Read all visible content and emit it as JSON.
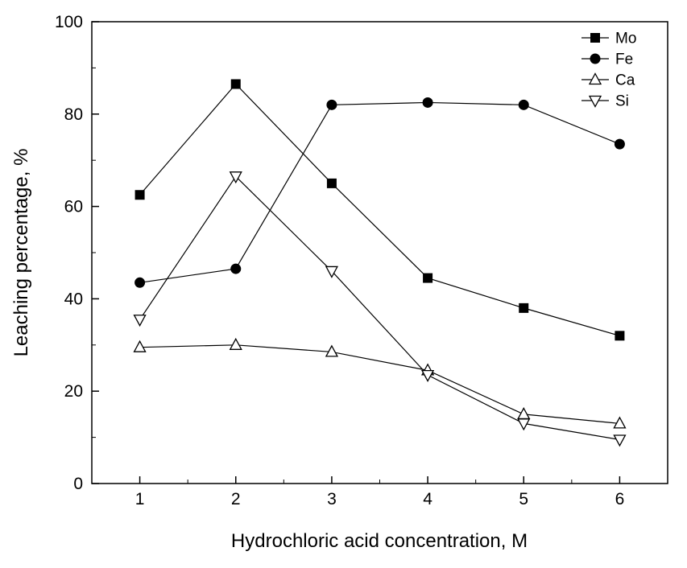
{
  "chart_data": {
    "type": "line",
    "title": "",
    "xlabel": "Hydrochloric acid concentration, M",
    "ylabel": "Leaching percentage, %",
    "xlim": [
      0.5,
      6.5
    ],
    "ylim": [
      0,
      100
    ],
    "x_ticks": [
      1,
      2,
      3,
      4,
      5,
      6
    ],
    "y_ticks": [
      0,
      20,
      40,
      60,
      80,
      100
    ],
    "x_minor_step": 0.5,
    "y_minor_step": 10,
    "grid": false,
    "legend_position": "top-right",
    "x": [
      1,
      2,
      3,
      4,
      5,
      6
    ],
    "series": [
      {
        "name": "Mo",
        "marker": "square-filled",
        "color": "#000000",
        "values": [
          62.5,
          86.5,
          65.0,
          44.5,
          38.0,
          32.0
        ]
      },
      {
        "name": "Fe",
        "marker": "circle-filled",
        "color": "#000000",
        "values": [
          43.5,
          46.5,
          82.0,
          82.5,
          82.0,
          73.5
        ]
      },
      {
        "name": "Ca",
        "marker": "triangle-up-open",
        "color": "#000000",
        "values": [
          29.5,
          30.0,
          28.5,
          24.5,
          15.0,
          13.0
        ]
      },
      {
        "name": "Si",
        "marker": "triangle-down-open",
        "color": "#000000",
        "values": [
          35.5,
          66.5,
          46.0,
          23.5,
          13.0,
          9.5
        ]
      }
    ]
  }
}
